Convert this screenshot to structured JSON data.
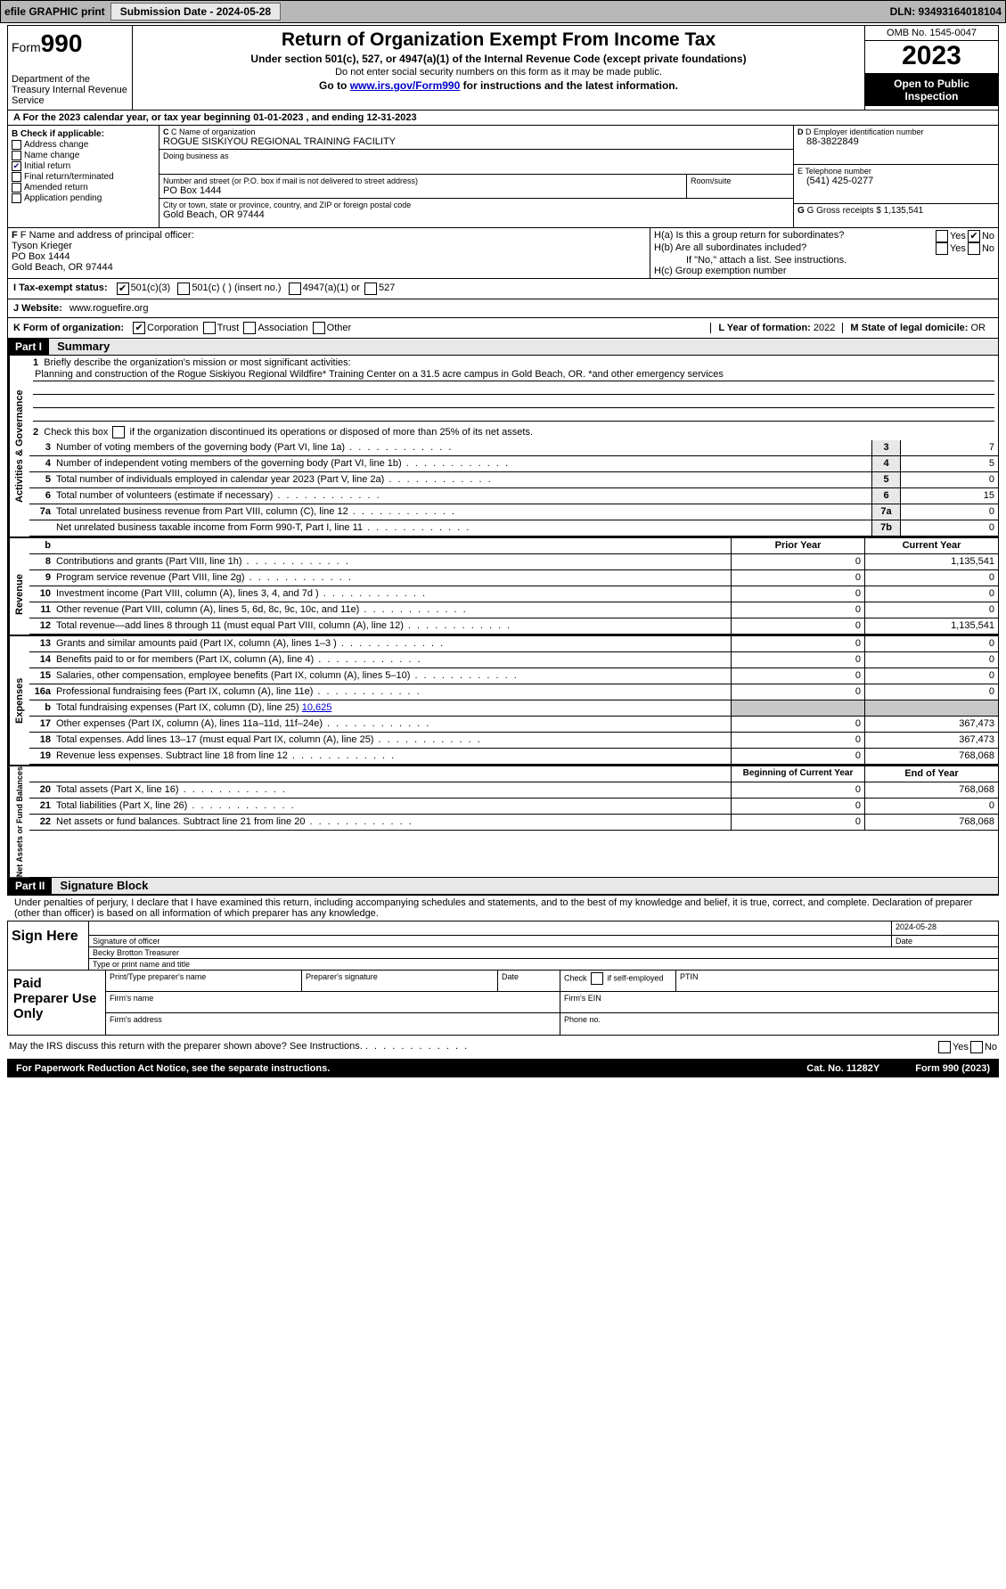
{
  "topbar": {
    "efile": "efile GRAPHIC print",
    "btn": "Submission Date - 2024-05-28",
    "dln": "DLN: 93493164018104"
  },
  "header": {
    "form_label": "Form",
    "form_no": "990",
    "dept": "Department of the Treasury Internal Revenue Service",
    "title": "Return of Organization Exempt From Income Tax",
    "sub1": "Under section 501(c), 527, or 4947(a)(1) of the Internal Revenue Code (except private foundations)",
    "sub2": "Do not enter social security numbers on this form as it may be made public.",
    "sub3_pre": "Go to ",
    "sub3_link": "www.irs.gov/Form990",
    "sub3_post": " for instructions and the latest information.",
    "omb": "OMB No. 1545-0047",
    "year": "2023",
    "inspect": "Open to Public Inspection"
  },
  "line_a": "A For the 2023 calendar year, or tax year beginning 01-01-2023   , and ending 12-31-2023",
  "col_b": {
    "title": "B Check if applicable:",
    "items": [
      "Address change",
      "Name change",
      "Initial return",
      "Final return/terminated",
      "Amended return",
      "Application pending"
    ],
    "checked_idx": 2
  },
  "col_c": {
    "name_lbl": "C Name of organization",
    "name": "ROGUE SISKIYOU REGIONAL TRAINING FACILITY",
    "dba_lbl": "Doing business as",
    "addr_lbl": "Number and street (or P.O. box if mail is not delivered to street address)",
    "addr": "PO Box 1444",
    "room_lbl": "Room/suite",
    "city_lbl": "City or town, state or province, country, and ZIP or foreign postal code",
    "city": "Gold Beach, OR  97444"
  },
  "col_d": {
    "ein_lbl": "D Employer identification number",
    "ein": "88-3822849",
    "tel_lbl": "E Telephone number",
    "tel": "(541) 425-0277",
    "gross_lbl": "G Gross receipts $",
    "gross": "1,135,541"
  },
  "row_f": {
    "lbl": "F  Name and address of principal officer:",
    "name": "Tyson Krieger",
    "addr1": "PO Box 1444",
    "addr2": "Gold Beach, OR  97444"
  },
  "row_h": {
    "ha": "H(a)  Is this a group return for subordinates?",
    "hb": "H(b)  Are all subordinates included?",
    "hb_note": "If \"No,\" attach a list. See instructions.",
    "hc": "H(c)  Group exemption number"
  },
  "row_i": {
    "lbl": "I     Tax-exempt status:",
    "c3": "501(c)(3)",
    "c_other": "501(c) (  ) (insert no.)",
    "a1": "4947(a)(1) or",
    "s527": "527"
  },
  "row_j": {
    "lbl": "J     Website:",
    "val": "www.roguefire.org"
  },
  "row_k": {
    "lbl": "K Form of organization:",
    "corp": "Corporation",
    "trust": "Trust",
    "assoc": "Association",
    "other": "Other"
  },
  "row_l": {
    "lbl": "L Year of formation:",
    "val": "2022"
  },
  "row_m": {
    "lbl": "M State of legal domicile:",
    "val": "OR"
  },
  "part1": {
    "hdr": "Part I",
    "title": "Summary"
  },
  "summary": {
    "tab1": "Activities & Governance",
    "l1_lbl": "Briefly describe the organization's mission or most significant activities:",
    "l1_text": "Planning and construction of the Rogue Siskiyou Regional Wildfire* Training Center on a 31.5 acre campus in Gold Beach, OR. *and other emergency services",
    "l2": "Check this box       if the organization discontinued its operations or disposed of more than 25% of its net assets.",
    "lines_ag": [
      {
        "n": "3",
        "t": "Number of voting members of the governing body (Part VI, line 1a)",
        "b": "3",
        "v": "7"
      },
      {
        "n": "4",
        "t": "Number of independent voting members of the governing body (Part VI, line 1b)",
        "b": "4",
        "v": "5"
      },
      {
        "n": "5",
        "t": "Total number of individuals employed in calendar year 2023 (Part V, line 2a)",
        "b": "5",
        "v": "0"
      },
      {
        "n": "6",
        "t": "Total number of volunteers (estimate if necessary)",
        "b": "6",
        "v": "15"
      },
      {
        "n": "7a",
        "t": "Total unrelated business revenue from Part VIII, column (C), line 12",
        "b": "7a",
        "v": "0"
      },
      {
        "n": "",
        "t": "Net unrelated business taxable income from Form 990-T, Part I, line 11",
        "b": "7b",
        "v": "0"
      }
    ],
    "col_hdr_prior": "Prior Year",
    "col_hdr_curr": "Current Year",
    "tab2": "Revenue",
    "lines_rev": [
      {
        "n": "8",
        "t": "Contributions and grants (Part VIII, line 1h)",
        "p": "0",
        "c": "1,135,541"
      },
      {
        "n": "9",
        "t": "Program service revenue (Part VIII, line 2g)",
        "p": "0",
        "c": "0"
      },
      {
        "n": "10",
        "t": "Investment income (Part VIII, column (A), lines 3, 4, and 7d )",
        "p": "0",
        "c": "0"
      },
      {
        "n": "11",
        "t": "Other revenue (Part VIII, column (A), lines 5, 6d, 8c, 9c, 10c, and 11e)",
        "p": "0",
        "c": "0"
      },
      {
        "n": "12",
        "t": "Total revenue—add lines 8 through 11 (must equal Part VIII, column (A), line 12)",
        "p": "0",
        "c": "1,135,541"
      }
    ],
    "tab3": "Expenses",
    "lines_exp": [
      {
        "n": "13",
        "t": "Grants and similar amounts paid (Part IX, column (A), lines 1–3 )",
        "p": "0",
        "c": "0"
      },
      {
        "n": "14",
        "t": "Benefits paid to or for members (Part IX, column (A), line 4)",
        "p": "0",
        "c": "0"
      },
      {
        "n": "15",
        "t": "Salaries, other compensation, employee benefits (Part IX, column (A), lines 5–10)",
        "p": "0",
        "c": "0"
      },
      {
        "n": "16a",
        "t": "Professional fundraising fees (Part IX, column (A), line 11e)",
        "p": "0",
        "c": "0"
      }
    ],
    "l16b_pre": "Total fundraising expenses (Part IX, column (D), line 25) ",
    "l16b_val": "10,625",
    "lines_exp2": [
      {
        "n": "17",
        "t": "Other expenses (Part IX, column (A), lines 11a–11d, 11f–24e)",
        "p": "0",
        "c": "367,473"
      },
      {
        "n": "18",
        "t": "Total expenses. Add lines 13–17 (must equal Part IX, column (A), line 25)",
        "p": "0",
        "c": "367,473"
      },
      {
        "n": "19",
        "t": "Revenue less expenses. Subtract line 18 from line 12",
        "p": "0",
        "c": "768,068"
      }
    ],
    "tab4": "Net Assets or Fund Balances",
    "col_hdr_beg": "Beginning of Current Year",
    "col_hdr_end": "End of Year",
    "lines_na": [
      {
        "n": "20",
        "t": "Total assets (Part X, line 16)",
        "p": "0",
        "c": "768,068"
      },
      {
        "n": "21",
        "t": "Total liabilities (Part X, line 26)",
        "p": "0",
        "c": "0"
      },
      {
        "n": "22",
        "t": "Net assets or fund balances. Subtract line 21 from line 20",
        "p": "0",
        "c": "768,068"
      }
    ]
  },
  "part2": {
    "hdr": "Part II",
    "title": "Signature Block"
  },
  "sig": {
    "decl": "Under penalties of perjury, I declare that I have examined this return, including accompanying schedules and statements, and to the best of my knowledge and belief, it is true, correct, and complete. Declaration of preparer (other than officer) is based on all information of which preparer has any knowledge.",
    "sign_here": "Sign Here",
    "date": "2024-05-28",
    "sig_lbl": "Signature of officer",
    "name": "Becky Brotton  Treasurer",
    "name_lbl": "Type or print name and title",
    "paid": "Paid Preparer Use Only",
    "prep_name": "Print/Type preparer's name",
    "prep_sig": "Preparer's signature",
    "prep_date": "Date",
    "self_emp": "Check        if self-employed",
    "ptin": "PTIN",
    "firm_name": "Firm's name",
    "firm_ein": "Firm's EIN",
    "firm_addr": "Firm's address",
    "phone": "Phone no."
  },
  "footer": {
    "discuss": "May the IRS discuss this return with the preparer shown above? See Instructions.",
    "paperwork": "For Paperwork Reduction Act Notice, see the separate instructions.",
    "cat": "Cat. No. 11282Y",
    "form": "Form 990 (2023)"
  }
}
